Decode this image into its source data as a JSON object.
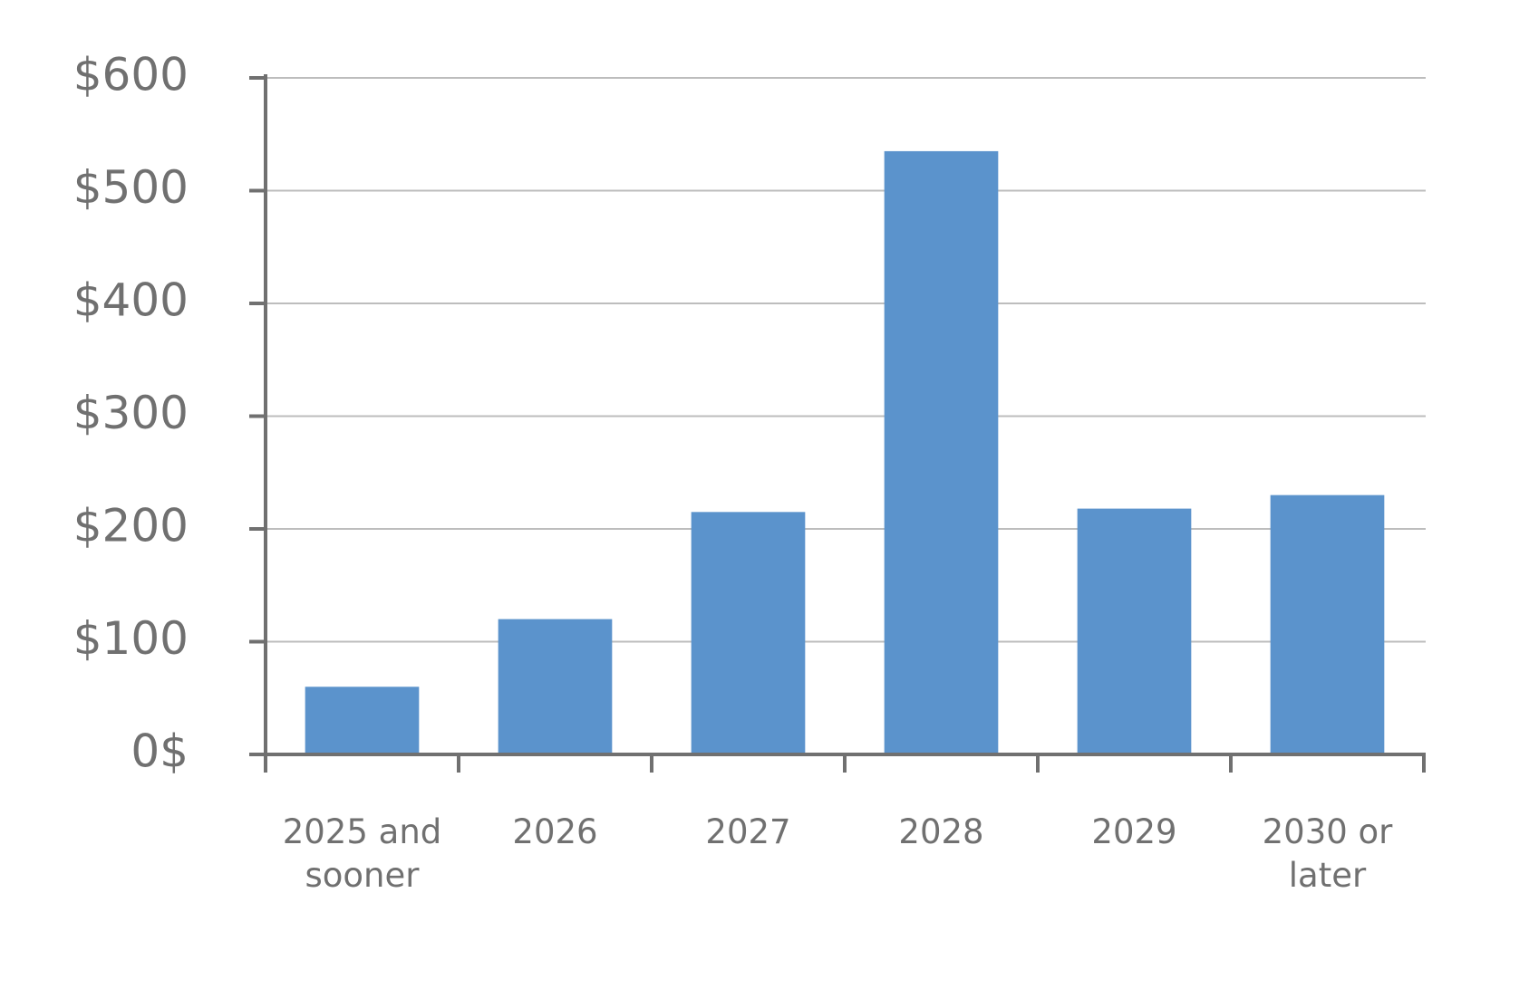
{
  "chart_data": {
    "type": "bar",
    "categories": [
      "2025 and sooner",
      "2026",
      "2027",
      "2028",
      "2029",
      "2030 or later"
    ],
    "values": [
      60,
      120,
      215,
      535,
      218,
      230
    ],
    "color": "#5b93cc",
    "ylim": [
      0,
      600
    ],
    "yticks": [
      {
        "value": 0,
        "label": "0$"
      },
      {
        "value": 100,
        "label": "$100"
      },
      {
        "value": 200,
        "label": "$200"
      },
      {
        "value": 300,
        "label": "$300"
      },
      {
        "value": 400,
        "label": "$400"
      },
      {
        "value": 500,
        "label": "$500"
      },
      {
        "value": 600,
        "label": "$600"
      }
    ],
    "grid": true
  }
}
